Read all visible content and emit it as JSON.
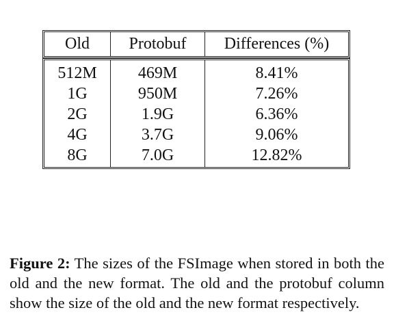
{
  "table": {
    "headers": [
      "Old",
      "Protobuf",
      "Differences (%)"
    ],
    "rows": [
      [
        "512M",
        "469M",
        "8.41%"
      ],
      [
        "1G",
        "950M",
        "7.26%"
      ],
      [
        "2G",
        "1.9G",
        "6.36%"
      ],
      [
        "4G",
        "3.7G",
        "9.06%"
      ],
      [
        "8G",
        "7.0G",
        "12.82%"
      ]
    ]
  },
  "caption": {
    "label": "Figure 2:",
    "text": "The sizes of the FSImage when stored in both the old and the new format. The old and the protobuf column show the size of the old and the new format respectively."
  }
}
